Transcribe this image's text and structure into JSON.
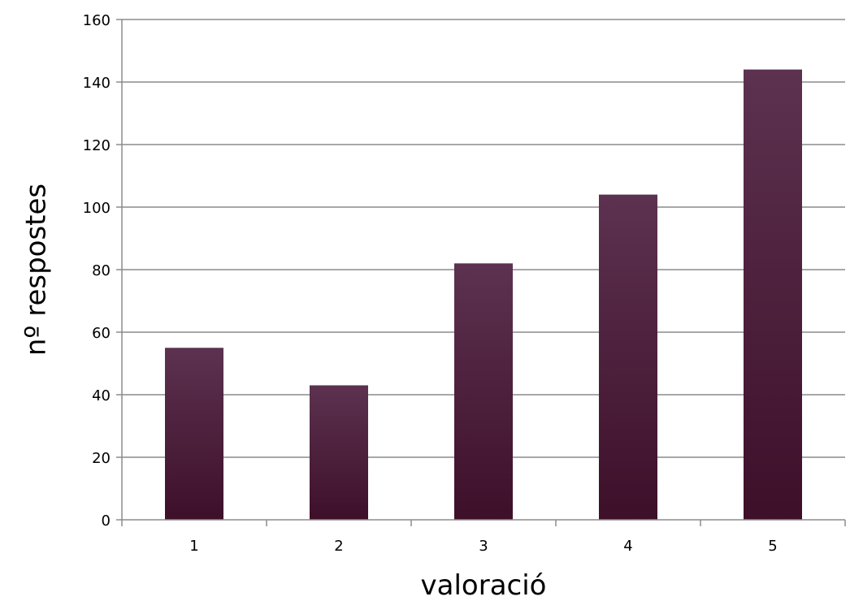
{
  "chart_data": {
    "type": "bar",
    "categories": [
      "1",
      "2",
      "3",
      "4",
      "5"
    ],
    "values": [
      55,
      43,
      82,
      104,
      144
    ],
    "xlabel": "valoració",
    "ylabel": "nº respostes",
    "ylim": [
      0,
      160
    ],
    "yticks": [
      0,
      20,
      40,
      60,
      80,
      100,
      120,
      140,
      160
    ],
    "grid": true,
    "legend": "none",
    "colors": {
      "bar_top": "#5c3250",
      "bar_bottom": "#3e0f29",
      "grid": "#8c8c8c",
      "axis": "#8c8c8c"
    }
  }
}
